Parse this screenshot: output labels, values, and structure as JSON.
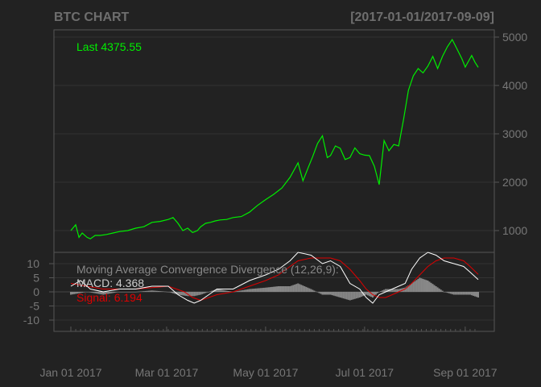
{
  "chart_data": {
    "type": "line",
    "title": "BTC CHART",
    "date_range": "[2017-01-01/2017-09-09]",
    "colors": {
      "background": "#222222",
      "grid": "#333333",
      "frame": "#555555",
      "price": "#00ee00",
      "macd": "#ffffff",
      "signal": "#dd0000",
      "histogram": "#888888",
      "text": "#777777"
    },
    "price_panel": {
      "last_label": "Last 4375.55",
      "y_ticks": [
        "1000",
        "2000",
        "3000",
        "4000",
        "5000"
      ],
      "ylim": [
        550,
        5150
      ],
      "grid": true
    },
    "macd_panel": {
      "label": "Moving Average Convergence Divergence (12,26,9):",
      "macd_label": "MACD: 4.368",
      "signal_label": "Signal: 6.194",
      "y_ticks": [
        "10",
        "5",
        "0",
        "-5",
        "-10"
      ],
      "ylim": [
        -14,
        14
      ]
    },
    "x_ticks": [
      "Jan 01 2017",
      "Mar 01 2017",
      "May 01 2017",
      "Jul 01 2017",
      "Sep 01 2017"
    ],
    "x_tick_days": [
      0,
      59,
      120,
      181,
      243
    ],
    "xlim_days": [
      0,
      251
    ],
    "series": [
      {
        "name": "BTC",
        "x_days": [
          0,
          3,
          5,
          7,
          10,
          12,
          15,
          18,
          22,
          26,
          30,
          35,
          40,
          45,
          50,
          55,
          60,
          63,
          66,
          69,
          72,
          75,
          78,
          80,
          83,
          86,
          89,
          92,
          96,
          100,
          105,
          110,
          115,
          120,
          125,
          130,
          135,
          140,
          143,
          146,
          149,
          152,
          155,
          158,
          160,
          163,
          166,
          169,
          172,
          175,
          178,
          181,
          184,
          187,
          190,
          193,
          196,
          199,
          202,
          205,
          208,
          211,
          214,
          217,
          220,
          223,
          226,
          229,
          232,
          235,
          238,
          241,
          243,
          245,
          247,
          249,
          251
        ],
        "values": [
          1000,
          1120,
          860,
          950,
          860,
          830,
          900,
          900,
          920,
          950,
          980,
          1000,
          1050,
          1080,
          1170,
          1190,
          1230,
          1270,
          1150,
          1000,
          1050,
          960,
          1000,
          1080,
          1150,
          1170,
          1200,
          1220,
          1230,
          1270,
          1290,
          1380,
          1520,
          1640,
          1750,
          1880,
          2100,
          2400,
          2030,
          2280,
          2530,
          2800,
          2960,
          2510,
          2550,
          2750,
          2700,
          2470,
          2510,
          2710,
          2590,
          2560,
          2550,
          2330,
          1950,
          2860,
          2650,
          2780,
          2750,
          3300,
          3900,
          4200,
          4350,
          4260,
          4400,
          4600,
          4350,
          4600,
          4800,
          4950,
          4750,
          4550,
          4380,
          4500,
          4620,
          4480,
          4375.55
        ]
      },
      {
        "name": "MACD",
        "x_days": [
          0,
          6,
          12,
          20,
          30,
          40,
          50,
          60,
          66,
          72,
          76,
          80,
          85,
          90,
          100,
          110,
          120,
          128,
          135,
          140,
          148,
          155,
          160,
          166,
          172,
          178,
          182,
          186,
          190,
          194,
          198,
          202,
          206,
          210,
          215,
          220,
          225,
          230,
          236,
          242,
          246,
          251
        ],
        "values": [
          2,
          4,
          1,
          0,
          1,
          1,
          2,
          2,
          -1,
          -3,
          -4,
          -3,
          -1,
          1,
          1,
          4,
          6,
          8,
          11,
          14,
          13,
          10,
          11,
          9,
          3,
          1,
          -2,
          -4,
          -1,
          0,
          1,
          2,
          3,
          8,
          12,
          14,
          13,
          11,
          10,
          9,
          7,
          4.368
        ]
      },
      {
        "name": "Signal",
        "x_days": [
          0,
          10,
          20,
          30,
          40,
          50,
          60,
          70,
          75,
          80,
          85,
          90,
          100,
          110,
          120,
          128,
          135,
          140,
          148,
          155,
          160,
          166,
          172,
          178,
          182,
          186,
          190,
          194,
          198,
          202,
          206,
          210,
          215,
          220,
          225,
          230,
          236,
          242,
          246,
          251
        ],
        "values": [
          3,
          2,
          1,
          1,
          1,
          1.5,
          2,
          0,
          -2,
          -3,
          -2,
          -1,
          0,
          2,
          4,
          6,
          9,
          11,
          12,
          12,
          12,
          11,
          8,
          4,
          1,
          -1,
          -2,
          -2,
          -1,
          0,
          1,
          3,
          6,
          9,
          11,
          12,
          12,
          11,
          9,
          6.194
        ]
      },
      {
        "name": "Histogram",
        "x_days": [
          0,
          10,
          20,
          30,
          40,
          50,
          60,
          66,
          72,
          76,
          80,
          85,
          90,
          100,
          110,
          120,
          128,
          135,
          140,
          148,
          155,
          160,
          166,
          172,
          178,
          182,
          186,
          190,
          194,
          198,
          202,
          206,
          210,
          215,
          220,
          225,
          230,
          236,
          242,
          246,
          251
        ],
        "values": [
          -1,
          0,
          -1,
          0,
          0,
          0.5,
          0,
          -1,
          -1.5,
          -1.5,
          -1,
          0,
          1,
          0,
          1,
          1.5,
          2,
          2,
          3,
          1,
          -1,
          -1,
          -2,
          -3,
          -2,
          -1,
          -2,
          0,
          1,
          1,
          1,
          1.5,
          3,
          5,
          4,
          2,
          0,
          -1,
          -1,
          -1,
          -2
        ]
      }
    ]
  }
}
